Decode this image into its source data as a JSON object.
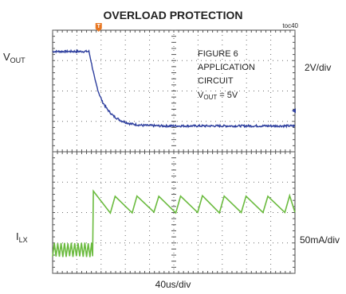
{
  "chart_data": {
    "type": "line",
    "title": "OVERLOAD PROTECTION",
    "figure_id": "toc40",
    "time_scale": "40us/div",
    "time_divisions": 10,
    "vertical_divisions": 8,
    "annotation": {
      "line1": "FIGURE 6",
      "line2": "APPLICATION",
      "line3": "CIRCUIT",
      "line4": {
        "label": "V",
        "sub": "OUT",
        "rest": " = 5V"
      }
    },
    "series": [
      {
        "name_main": "V",
        "name_sub": "OUT",
        "scale": "2V/div",
        "color": "#2e3f9e",
        "units": "divisions",
        "points": [
          [
            0,
            7.3
          ],
          [
            1.5,
            7.3
          ],
          [
            1.62,
            6.85
          ],
          [
            1.75,
            6.35
          ],
          [
            1.9,
            5.95
          ],
          [
            2.05,
            5.65
          ],
          [
            2.25,
            5.4
          ],
          [
            2.5,
            5.18
          ],
          [
            2.8,
            5.03
          ],
          [
            3.2,
            4.92
          ],
          [
            3.7,
            4.87
          ],
          [
            4.5,
            4.85
          ],
          [
            10,
            4.85
          ]
        ]
      },
      {
        "name_main": "I",
        "name_sub": "LX",
        "scale": "50mA/div",
        "color": "#6bbb3f",
        "units": "divisions",
        "ripple_before_step": {
          "x_start": 0,
          "x_end": 1.65,
          "period": 0.14,
          "low": 0.55,
          "high": 1.0
        },
        "step_at_x": 1.65,
        "ripple_after_step": {
          "period": 0.9,
          "low": 2.0,
          "high": 2.55
        }
      }
    ],
    "trigger_marker": {
      "x_div": 1.9,
      "label": "T"
    },
    "offset_arrow_level_div": 5.35
  },
  "colors": {
    "grid": "#6d6d6d",
    "border": "#444444",
    "marker": "#e87722"
  }
}
